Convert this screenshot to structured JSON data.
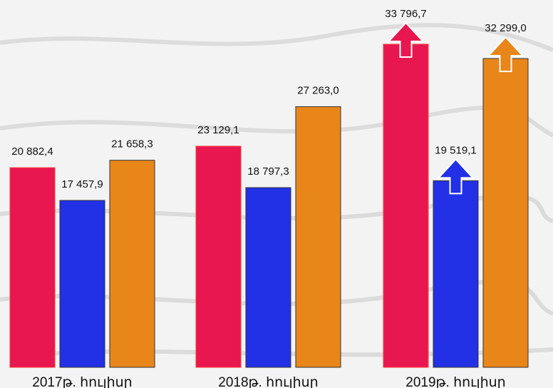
{
  "chart_data": {
    "type": "bar",
    "categories": [
      "2017թ. հուլիսը",
      "2018թ. հուլիսը",
      "2019թ. հուլիսը"
    ],
    "series": [
      {
        "color": "#e8174f",
        "values": [
          20882.4,
          23129.1,
          33796.7
        ],
        "value_labels": [
          "20 882,4",
          "23 129,1",
          "33 796,7"
        ]
      },
      {
        "color": "#2230e6",
        "values": [
          17457.9,
          18797.3,
          19519.1
        ],
        "value_labels": [
          "17 457,9",
          "18 797,3",
          "19 519,1"
        ]
      },
      {
        "color": "#e8861a",
        "values": [
          21658.3,
          27263.0,
          32299.0
        ],
        "value_labels": [
          "21 658,3",
          "27 263,0",
          "32 299,0"
        ]
      }
    ]
  }
}
